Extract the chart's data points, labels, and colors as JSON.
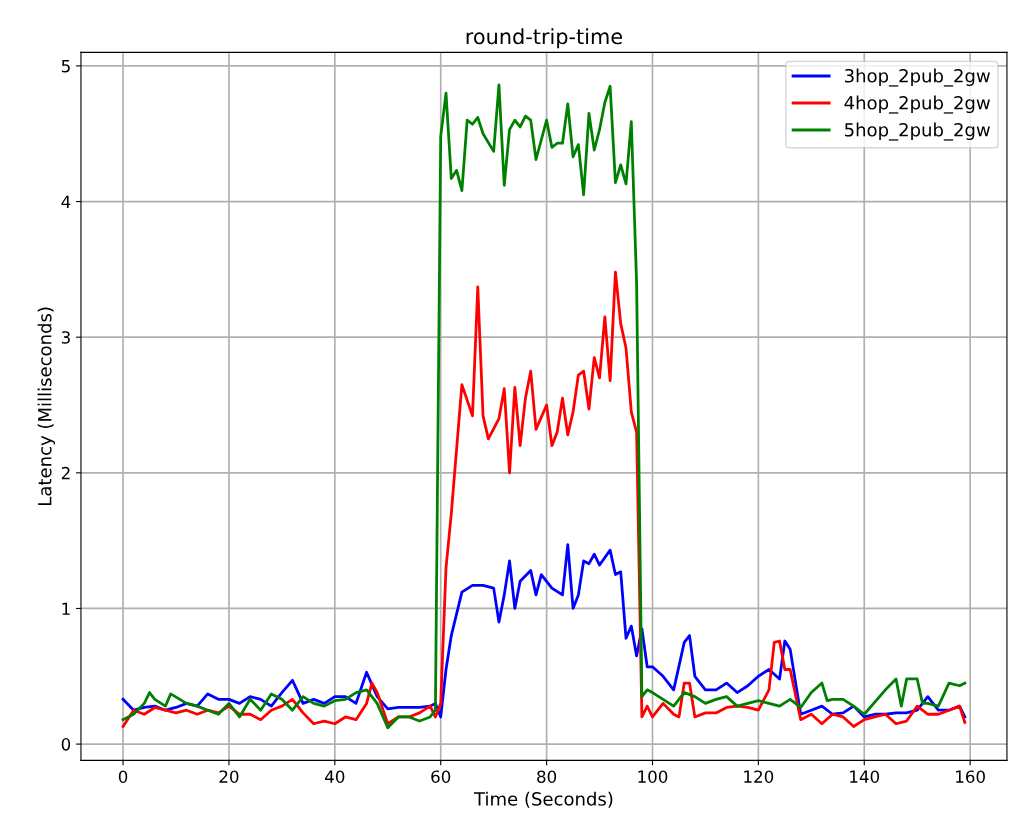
{
  "chart_data": {
    "type": "line",
    "title": "round-trip-time",
    "xlabel": "Time (Seconds)",
    "ylabel": "Latency (Milliseconds)",
    "xlim": [
      -7.95,
      166.95
    ],
    "ylim": [
      -0.12,
      5.1
    ],
    "xticks": [
      0,
      20,
      40,
      60,
      80,
      100,
      120,
      140,
      160
    ],
    "yticks": [
      0,
      1,
      2,
      3,
      4,
      5
    ],
    "grid": true,
    "legend": "top right",
    "series": [
      {
        "name": "3hop_2pub_2gw",
        "color": "#0000ff",
        "x": [
          0,
          2,
          4,
          6,
          8,
          10,
          12,
          14,
          16,
          18,
          20,
          22,
          24,
          26,
          28,
          30,
          32,
          34,
          36,
          38,
          40,
          42,
          44,
          46,
          48,
          50,
          52,
          54,
          56,
          58,
          59,
          60,
          61,
          62,
          64,
          66,
          68,
          70,
          71,
          72,
          73,
          74,
          75,
          77,
          78,
          79,
          81,
          83,
          84,
          85,
          86,
          87,
          88,
          89,
          90,
          92,
          93,
          94,
          95,
          96,
          97,
          98,
          99,
          100,
          102,
          104,
          106,
          107,
          108,
          110,
          112,
          114,
          116,
          118,
          120,
          122,
          124,
          125,
          126,
          128,
          130,
          132,
          134,
          136,
          138,
          140,
          142,
          144,
          146,
          148,
          150,
          152,
          154,
          156,
          158,
          159
        ],
        "values": [
          0.33,
          0.25,
          0.27,
          0.28,
          0.25,
          0.27,
          0.3,
          0.28,
          0.37,
          0.33,
          0.33,
          0.3,
          0.35,
          0.33,
          0.28,
          0.38,
          0.47,
          0.3,
          0.33,
          0.3,
          0.35,
          0.35,
          0.3,
          0.53,
          0.35,
          0.26,
          0.27,
          0.27,
          0.27,
          0.28,
          0.3,
          0.2,
          0.55,
          0.8,
          1.12,
          1.17,
          1.17,
          1.15,
          0.9,
          1.1,
          1.35,
          1.0,
          1.2,
          1.28,
          1.1,
          1.25,
          1.15,
          1.1,
          1.47,
          1.0,
          1.1,
          1.35,
          1.33,
          1.4,
          1.32,
          1.43,
          1.25,
          1.27,
          0.78,
          0.87,
          0.65,
          0.85,
          0.57,
          0.57,
          0.5,
          0.4,
          0.75,
          0.8,
          0.5,
          0.4,
          0.4,
          0.45,
          0.38,
          0.43,
          0.5,
          0.55,
          0.48,
          0.76,
          0.7,
          0.22,
          0.25,
          0.28,
          0.22,
          0.23,
          0.28,
          0.2,
          0.22,
          0.22,
          0.23,
          0.23,
          0.25,
          0.35,
          0.25,
          0.25,
          0.28,
          0.2
        ]
      },
      {
        "name": "4hop_2pub_2gw",
        "color": "#ff0000",
        "x": [
          0,
          2,
          4,
          6,
          8,
          10,
          12,
          14,
          16,
          18,
          20,
          22,
          24,
          26,
          28,
          30,
          32,
          34,
          36,
          38,
          40,
          42,
          44,
          46,
          47,
          48,
          50,
          52,
          54,
          56,
          58,
          59,
          60,
          61,
          62,
          64,
          66,
          67,
          68,
          69,
          71,
          72,
          73,
          74,
          75,
          76,
          77,
          78,
          80,
          81,
          82,
          83,
          84,
          85,
          86,
          87,
          88,
          89,
          90,
          91,
          92,
          93,
          94,
          95,
          96,
          97,
          98,
          99,
          100,
          102,
          104,
          105,
          106,
          107,
          108,
          110,
          112,
          114,
          116,
          118,
          120,
          122,
          123,
          124,
          125,
          126,
          128,
          130,
          132,
          134,
          136,
          138,
          140,
          142,
          144,
          146,
          148,
          150,
          152,
          154,
          156,
          158,
          159
        ],
        "values": [
          0.13,
          0.25,
          0.22,
          0.27,
          0.25,
          0.23,
          0.25,
          0.22,
          0.25,
          0.23,
          0.28,
          0.22,
          0.22,
          0.18,
          0.25,
          0.28,
          0.33,
          0.23,
          0.15,
          0.17,
          0.15,
          0.2,
          0.18,
          0.3,
          0.45,
          0.38,
          0.15,
          0.2,
          0.2,
          0.23,
          0.28,
          0.2,
          0.3,
          1.3,
          1.7,
          2.65,
          2.42,
          3.37,
          2.42,
          2.25,
          2.4,
          2.62,
          2.0,
          2.63,
          2.2,
          2.55,
          2.75,
          2.32,
          2.5,
          2.2,
          2.3,
          2.55,
          2.28,
          2.45,
          2.72,
          2.75,
          2.47,
          2.85,
          2.7,
          3.15,
          2.68,
          3.48,
          3.1,
          2.92,
          2.45,
          2.3,
          0.2,
          0.28,
          0.2,
          0.3,
          0.22,
          0.2,
          0.45,
          0.45,
          0.2,
          0.23,
          0.23,
          0.27,
          0.28,
          0.27,
          0.25,
          0.4,
          0.75,
          0.76,
          0.55,
          0.55,
          0.18,
          0.22,
          0.15,
          0.22,
          0.2,
          0.13,
          0.18,
          0.2,
          0.22,
          0.15,
          0.17,
          0.28,
          0.22,
          0.22,
          0.25,
          0.28,
          0.16
        ]
      },
      {
        "name": "5hop_2pub_2gw",
        "color": "#008000",
        "x": [
          0,
          2,
          4,
          5,
          6,
          8,
          9,
          12,
          14,
          16,
          18,
          20,
          22,
          24,
          26,
          28,
          30,
          32,
          34,
          36,
          38,
          40,
          42,
          44,
          46,
          48,
          50,
          52,
          54,
          56,
          58,
          59,
          60,
          61,
          62,
          63,
          64,
          65,
          66,
          67,
          68,
          70,
          71,
          72,
          73,
          74,
          75,
          76,
          77,
          78,
          80,
          81,
          82,
          83,
          84,
          85,
          86,
          87,
          88,
          89,
          90,
          91,
          92,
          93,
          94,
          95,
          96,
          97,
          98,
          99,
          100,
          102,
          104,
          106,
          108,
          110,
          112,
          114,
          116,
          118,
          120,
          122,
          124,
          126,
          128,
          130,
          132,
          133,
          134,
          136,
          138,
          140,
          144,
          146,
          147,
          148,
          150,
          151,
          152,
          154,
          156,
          158,
          159
        ],
        "values": [
          0.18,
          0.22,
          0.3,
          0.38,
          0.33,
          0.28,
          0.37,
          0.3,
          0.28,
          0.25,
          0.22,
          0.3,
          0.2,
          0.33,
          0.25,
          0.37,
          0.33,
          0.25,
          0.35,
          0.3,
          0.28,
          0.32,
          0.33,
          0.38,
          0.4,
          0.3,
          0.12,
          0.2,
          0.2,
          0.17,
          0.2,
          0.25,
          4.48,
          4.8,
          4.17,
          4.23,
          4.08,
          4.6,
          4.57,
          4.62,
          4.5,
          4.37,
          4.86,
          4.12,
          4.53,
          4.6,
          4.55,
          4.63,
          4.6,
          4.31,
          4.6,
          4.4,
          4.43,
          4.43,
          4.72,
          4.33,
          4.42,
          4.05,
          4.65,
          4.38,
          4.53,
          4.73,
          4.85,
          4.14,
          4.27,
          4.13,
          4.59,
          3.4,
          0.35,
          0.4,
          0.38,
          0.33,
          0.28,
          0.38,
          0.35,
          0.3,
          0.33,
          0.35,
          0.28,
          0.3,
          0.32,
          0.3,
          0.28,
          0.33,
          0.27,
          0.38,
          0.45,
          0.32,
          0.33,
          0.33,
          0.28,
          0.22,
          0.4,
          0.48,
          0.28,
          0.48,
          0.48,
          0.3,
          0.3,
          0.28,
          0.45,
          0.43,
          0.45
        ]
      }
    ]
  }
}
